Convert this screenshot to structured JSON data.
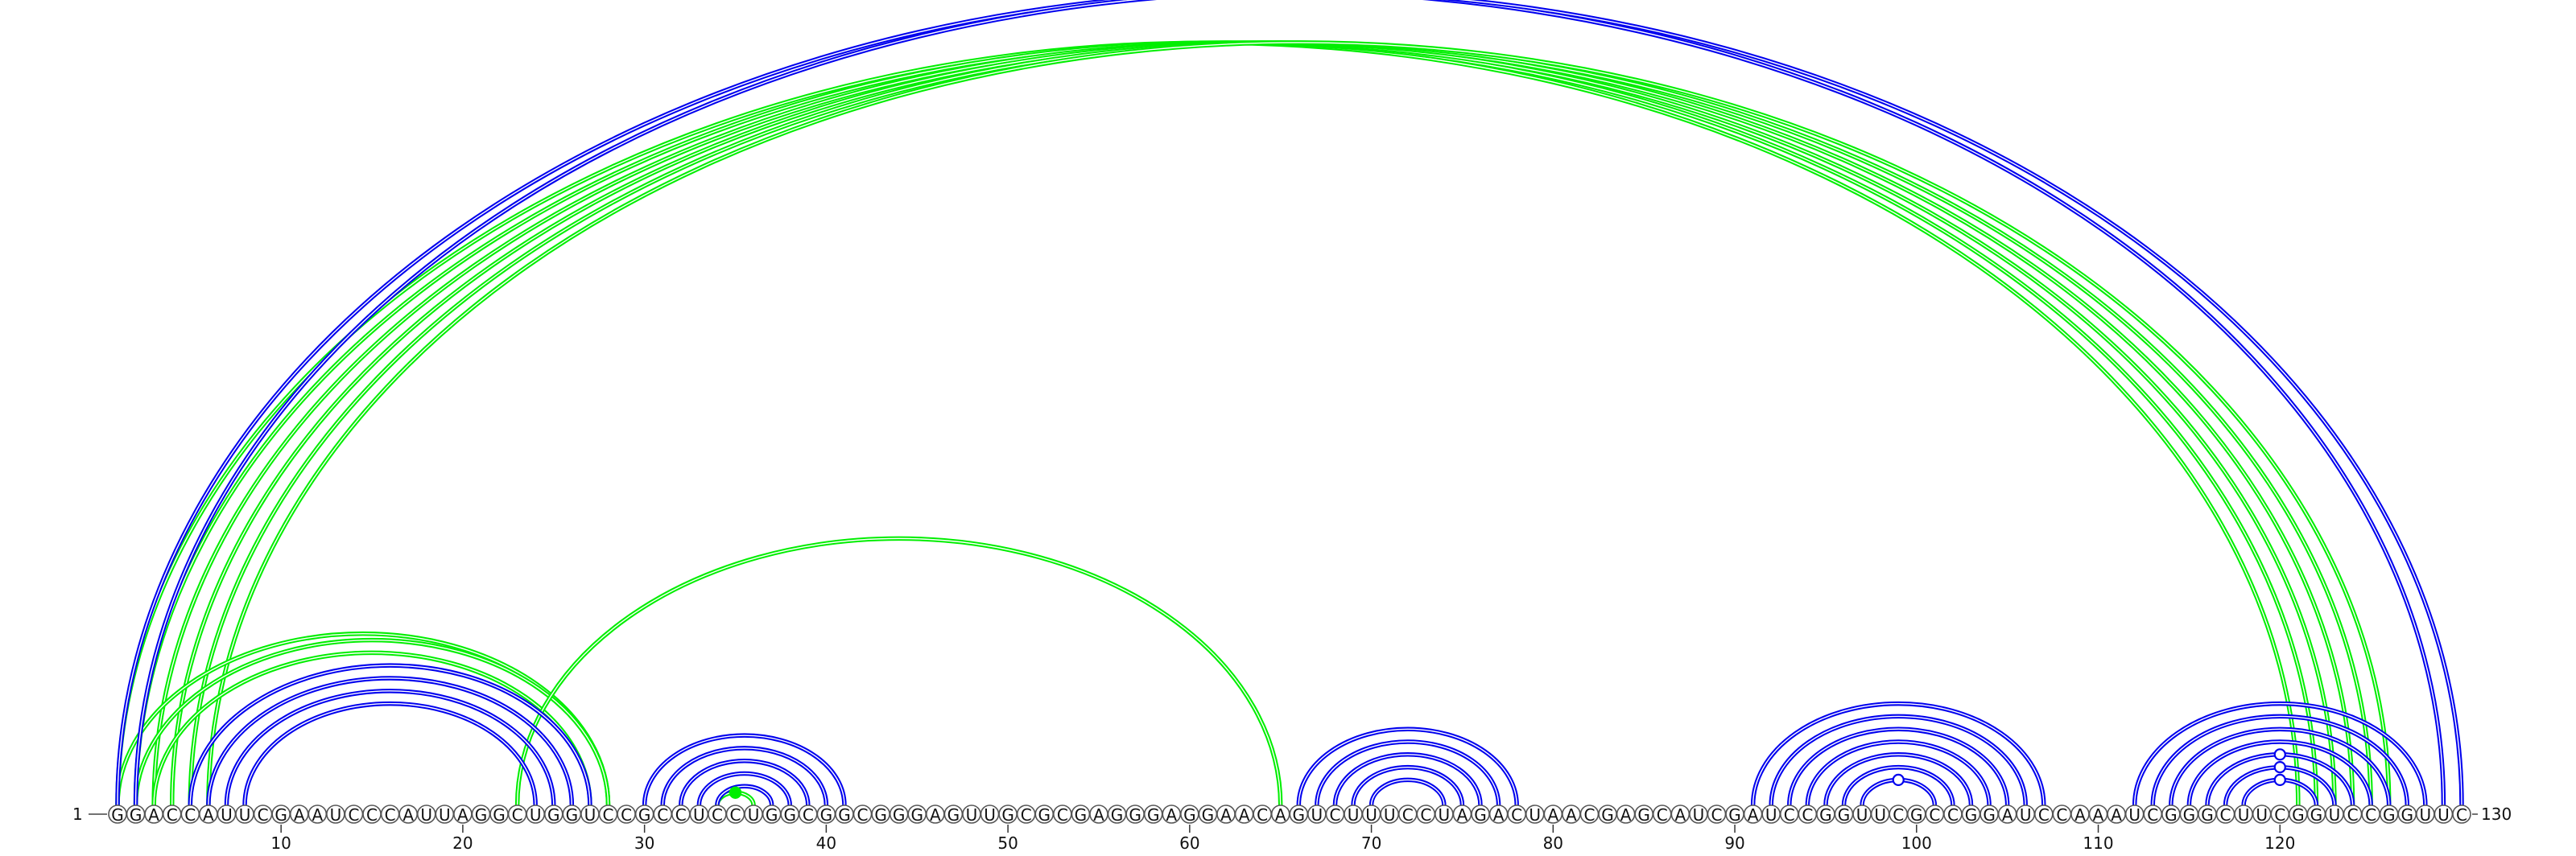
{
  "chart_data": {
    "type": "arc-diagram",
    "sequence": "GGACCAUUCGAAUCCCAUUAGGCUGGUCCGCCUCCUGGCGGCGGGAGUUGCGCGAGGGAGGAACAGUCUUUCCUAGACUAACGAGCAUCGAUCCGGUUCGCCGGAUCCAAAUCGGGCUUCGGUCCGGUUC",
    "start_label": "1",
    "end_label": "130",
    "ticks": [
      "10",
      "20",
      "30",
      "40",
      "50",
      "60",
      "70",
      "80",
      "90",
      "100",
      "110",
      "120"
    ],
    "tick_positions": [
      10,
      20,
      30,
      40,
      50,
      60,
      70,
      80,
      90,
      100,
      110,
      120
    ],
    "colors": {
      "primary": "#0000ee",
      "secondary": "#00ee00"
    },
    "primary_pairs": [
      [
        5,
        27
      ],
      [
        6,
        26
      ],
      [
        7,
        25
      ],
      [
        8,
        24
      ],
      [
        30,
        41
      ],
      [
        31,
        40
      ],
      [
        32,
        39
      ],
      [
        33,
        38
      ],
      [
        34,
        37
      ],
      [
        66,
        78
      ],
      [
        67,
        77
      ],
      [
        68,
        76
      ],
      [
        69,
        75
      ],
      [
        70,
        74
      ],
      [
        91,
        107
      ],
      [
        92,
        106
      ],
      [
        93,
        105
      ],
      [
        94,
        104
      ],
      [
        95,
        103
      ],
      [
        96,
        102
      ],
      [
        97,
        101
      ],
      [
        112,
        128
      ],
      [
        113,
        127
      ],
      [
        114,
        126
      ],
      [
        115,
        125
      ],
      [
        116,
        124
      ],
      [
        117,
        123
      ],
      [
        118,
        122
      ],
      [
        1,
        129
      ],
      [
        2,
        130
      ]
    ],
    "secondary_pairs": [
      [
        1,
        121
      ],
      [
        2,
        122
      ],
      [
        3,
        123
      ],
      [
        4,
        124
      ],
      [
        5,
        125
      ],
      [
        6,
        126
      ],
      [
        1,
        28
      ],
      [
        2,
        28
      ],
      [
        3,
        27
      ],
      [
        23,
        65
      ],
      [
        34,
        36
      ]
    ],
    "marker_primary_pairs": [
      [
        2,
        130
      ],
      [
        97,
        101
      ],
      [
        118,
        122
      ],
      [
        117,
        123
      ],
      [
        116,
        124
      ]
    ],
    "marker_secondary_pairs": [
      [
        34,
        36
      ]
    ]
  }
}
